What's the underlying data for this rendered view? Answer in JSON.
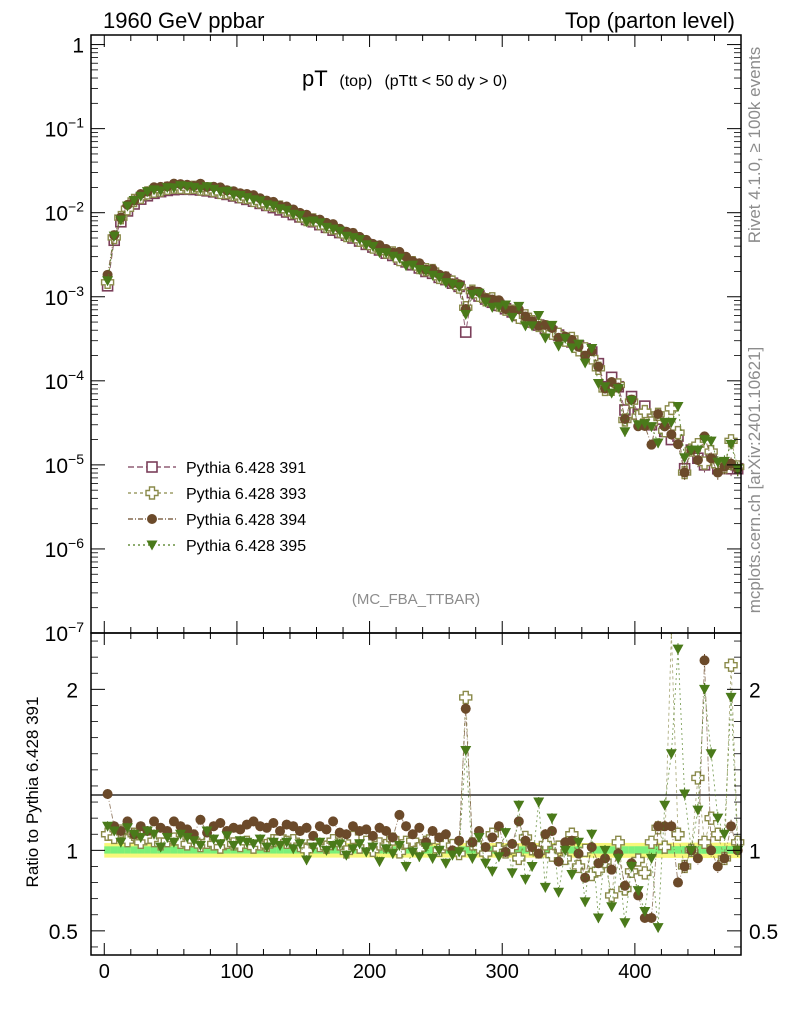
{
  "header": {
    "left_title": "1960 GeV ppbar",
    "right_title": "Top (parton level)"
  },
  "side_text": {
    "rivet": "Rivet 4.1.0, ≥ 100k events",
    "mcplots": "mcplots.cern.ch [arXiv:2401.10621]"
  },
  "colors": {
    "s391": "#7b3f5a",
    "s393": "#8a8a4a",
    "s394": "#6b4a2a",
    "s395": "#4a7a1a",
    "band_yellow": "#f7f77a",
    "band_green": "#7af07a"
  },
  "chart_data": {
    "type": "scatter",
    "title_main": "pT",
    "title_sub": "(top)",
    "title_cut": "(pTtt < 50 dy > 0)",
    "analysis": "(MC_FBA_TTBAR)",
    "xlim": [
      -10,
      480
    ],
    "ylim": [
      1e-07,
      1.3
    ],
    "ylog": true,
    "x_ticks": [
      "0",
      "100",
      "200",
      "300",
      "400"
    ],
    "y_ticks": [
      "1",
      "10^-1",
      "10^-2",
      "10^-3",
      "10^-4",
      "10^-5",
      "10^-6",
      "10^-7"
    ],
    "ratio_ylabel": "Ratio to Pythia 6.428 391",
    "ratio_ylim": [
      0.35,
      2.35
    ],
    "ratio_ticks": [
      "0.5",
      "1",
      "2"
    ],
    "series": [
      {
        "name": "Pythia 6.428 391",
        "marker": "open-square"
      },
      {
        "name": "Pythia 6.428 393",
        "marker": "open-cross"
      },
      {
        "name": "Pythia 6.428 394",
        "marker": "filled-circle"
      },
      {
        "name": "Pythia 6.428 395",
        "marker": "filled-triangle-down"
      }
    ],
    "x": [
      2.5,
      7.5,
      12.5,
      17.5,
      22.5,
      27.5,
      32.5,
      37.5,
      42.5,
      47.5,
      52.5,
      57.5,
      62.5,
      67.5,
      72.5,
      77.5,
      82.5,
      87.5,
      92.5,
      97.5,
      102.5,
      107.5,
      112.5,
      117.5,
      122.5,
      127.5,
      132.5,
      137.5,
      142.5,
      147.5,
      152.5,
      157.5,
      162.5,
      167.5,
      172.5,
      177.5,
      182.5,
      187.5,
      192.5,
      197.5,
      202.5,
      207.5,
      212.5,
      217.5,
      222.5,
      227.5,
      232.5,
      237.5,
      242.5,
      247.5,
      252.5,
      257.5,
      262.5,
      267.5,
      272.5,
      277.5,
      282.5,
      287.5,
      292.5,
      297.5,
      302.5,
      307.5,
      312.5,
      317.5,
      322.5,
      327.5,
      332.5,
      337.5,
      342.5,
      347.5,
      352.5,
      357.5,
      362.5,
      367.5,
      372.5,
      377.5,
      382.5,
      387.5,
      392.5,
      397.5,
      402.5,
      407.5,
      412.5,
      417.5,
      422.5,
      427.5,
      432.5,
      437.5,
      442.5,
      447.5,
      452.5,
      457.5,
      462.5,
      467.5,
      472.5,
      477.5
    ],
    "ref_values": [
      0.00135,
      0.0047,
      0.0078,
      0.0105,
      0.0127,
      0.0145,
      0.0159,
      0.017,
      0.0178,
      0.0184,
      0.0188,
      0.019,
      0.019,
      0.0189,
      0.0186,
      0.0182,
      0.0177,
      0.0171,
      0.0165,
      0.0158,
      0.0151,
      0.0144,
      0.0137,
      0.0129,
      0.0122,
      0.0115,
      0.0108,
      0.0102,
      0.0095,
      0.0089,
      0.0083,
      0.0078,
      0.0072,
      0.0067,
      0.0062,
      0.0058,
      0.0054,
      0.005,
      0.0046,
      0.0042,
      0.0039,
      0.0036,
      0.0033,
      0.0031,
      0.0028,
      0.0026,
      0.0024,
      0.0022,
      0.002,
      0.0019,
      0.0017,
      0.0016,
      0.00145,
      0.00133,
      0.00038,
      0.00112,
      0.00102,
      0.00094,
      0.00086,
      0.00079,
      0.00072,
      0.00066,
      0.0006,
      0.00055,
      0.0005,
      0.00046,
      0.00042,
      0.00038,
      0.00035,
      0.00032,
      0.00029,
      0.00026,
      0.00024,
      0.00022,
      0.00016,
      8.5e-05,
      0.00011,
      8.5e-05,
      4.5e-05,
      6.5e-05,
      4e-05,
      5e-05,
      3e-05,
      3.5e-05,
      2.5e-05,
      2e-05,
      2.2e-05,
      9e-06,
      1.5e-05,
      1.2e-05,
      1e-05,
      1.2e-05,
      9e-06,
      1e-05,
      9e-06,
      9e-06
    ],
    "ratios": {
      "s393": [
        1.1,
        1.08,
        1.12,
        1.06,
        1.1,
        1.05,
        1.08,
        1.06,
        1.04,
        1.06,
        1.07,
        1.05,
        1.04,
        1.06,
        1.03,
        1.05,
        1.04,
        1.02,
        1.05,
        1.04,
        1.03,
        1.05,
        1.02,
        1.04,
        1.03,
        1.06,
        1.08,
        1.05,
        1.06,
        1.03,
        1.0,
        1.05,
        1.03,
        1.02,
        1.06,
        1.04,
        0.99,
        1.08,
        1.02,
        1.05,
        1.0,
        1.04,
        1.03,
        1.07,
        0.99,
        1.05,
        1.06,
        1.01,
        1.05,
        1.08,
        1.0,
        1.04,
        1.03,
        0.98,
        1.95,
        1.04,
        1.02,
        0.98,
        1.1,
        1.01,
        0.99,
        1.02,
        0.95,
        1.08,
        1.01,
        0.99,
        1.04,
        0.97,
        1.02,
        0.95,
        1.1,
        0.9,
        1.0,
        0.85,
        0.88,
        0.93,
        0.72,
        1.05,
        0.76,
        0.87,
        0.94,
        0.86,
        1.05,
        1.14,
        1.02,
        2.35,
        1.1,
        0.9,
        1.0,
        1.45,
        1.05,
        1.2,
        1.1,
        0.95,
        2.15,
        1.05
      ],
      "s394": [
        1.35,
        1.15,
        1.12,
        1.18,
        1.1,
        1.15,
        1.12,
        1.18,
        1.14,
        1.12,
        1.18,
        1.15,
        1.13,
        1.1,
        1.19,
        1.11,
        1.15,
        1.17,
        1.12,
        1.14,
        1.13,
        1.16,
        1.18,
        1.15,
        1.14,
        1.17,
        1.12,
        1.16,
        1.15,
        1.12,
        1.14,
        1.09,
        1.15,
        1.13,
        1.18,
        1.11,
        1.1,
        1.15,
        1.12,
        1.13,
        1.09,
        1.14,
        1.12,
        1.08,
        1.22,
        1.15,
        1.1,
        1.14,
        1.05,
        1.12,
        1.08,
        1.1,
        1.0,
        1.06,
        1.88,
        1.05,
        1.12,
        1.02,
        1.08,
        1.15,
        0.99,
        1.04,
        1.18,
        1.06,
        1.02,
        0.98,
        1.1,
        1.12,
        0.93,
        1.05,
        1.06,
        0.98,
        0.83,
        1.02,
        0.92,
        0.95,
        0.88,
        0.98,
        0.78,
        0.92,
        0.72,
        0.58,
        0.58,
        1.15,
        1.15,
        1.15,
        0.8,
        0.9,
        1.0,
        0.95,
        2.18,
        1.0,
        0.9,
        0.95,
        1.15,
        1.0
      ],
      "s395": [
        1.15,
        1.12,
        1.05,
        1.14,
        1.1,
        1.08,
        1.12,
        1.1,
        1.02,
        1.08,
        1.05,
        1.1,
        1.08,
        1.06,
        1.03,
        1.12,
        1.07,
        1.04,
        1.09,
        1.03,
        1.06,
        1.05,
        1.04,
        1.07,
        1.02,
        1.05,
        1.03,
        1.05,
        1.01,
        1.04,
        0.94,
        1.02,
        1.05,
        1.0,
        1.03,
        1.04,
        0.97,
        1.01,
        1.04,
        0.99,
        1.02,
        0.93,
        1.01,
        0.98,
        1.03,
        0.9,
        0.99,
        0.96,
        1.02,
        0.95,
        1.0,
        0.92,
        0.97,
        0.99,
        1.62,
        0.95,
        1.08,
        0.92,
        0.87,
        0.96,
        1.11,
        0.86,
        1.28,
        0.82,
        0.9,
        1.3,
        0.77,
        1.2,
        0.74,
        1.0,
        0.85,
        1.05,
        0.68,
        1.1,
        0.58,
        1.0,
        0.65,
        0.95,
        0.55,
        0.9,
        0.75,
        0.62,
        0.95,
        0.52,
        1.28,
        1.6,
        2.25,
        1.35,
        1.0,
        1.25,
        2.0,
        1.6,
        1.2,
        1.1,
        1.95,
        1.0
      ]
    }
  }
}
